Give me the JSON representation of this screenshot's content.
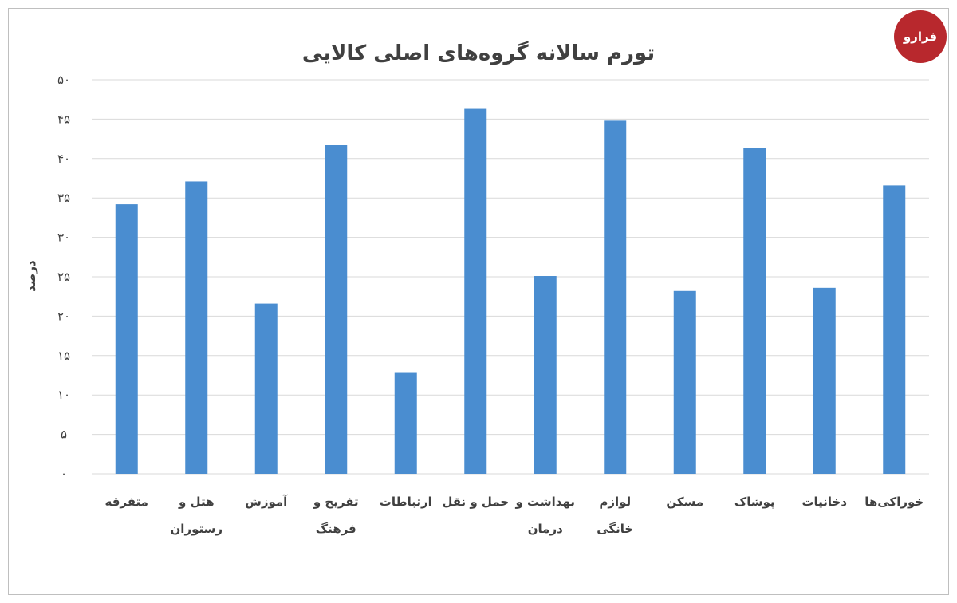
{
  "logo": {
    "text": "فرارو"
  },
  "chart_data": {
    "type": "bar",
    "title": "تورم سالانه گروه‌های اصلی کالایی",
    "xlabel": "",
    "ylabel": "درصد",
    "ylim": [
      0,
      50
    ],
    "yticks": [
      0,
      5,
      10,
      15,
      20,
      25,
      30,
      35,
      40,
      45,
      50
    ],
    "ytick_labels": [
      "۰",
      "۵",
      "۱۰",
      "۱۵",
      "۲۰",
      "۲۵",
      "۳۰",
      "۳۵",
      "۴۰",
      "۴۵",
      "۵۰"
    ],
    "categories": [
      "متفرقه",
      "هتل و رستوران",
      "آموزش",
      "تفریح و فرهنگ",
      "ارتباطات",
      "حمل و نقل",
      "بهداشت و درمان",
      "لوازم خانگی",
      "مسکن",
      "پوشاک",
      "دخانیات",
      "خوراکی‌ها"
    ],
    "category_lines": [
      [
        "متفرقه"
      ],
      [
        "هتل و",
        "رستوران"
      ],
      [
        "آموزش"
      ],
      [
        "تفریح و",
        "فرهنگ"
      ],
      [
        "ارتباطات"
      ],
      [
        "حمل و نقل"
      ],
      [
        "بهداشت و",
        "درمان"
      ],
      [
        "لوازم",
        "خانگی"
      ],
      [
        "مسکن"
      ],
      [
        "پوشاک"
      ],
      [
        "دخانیات"
      ],
      [
        "خوراکی‌ها"
      ]
    ],
    "values": [
      34.2,
      37.1,
      21.6,
      41.7,
      12.8,
      46.3,
      25.1,
      44.8,
      23.2,
      41.3,
      23.6,
      36.6
    ],
    "colors": {
      "bar": "#4a8dd0",
      "grid": "#d9d9d9",
      "text": "#404040",
      "logo": "#b8282d"
    },
    "grid": true,
    "legend": "none"
  }
}
